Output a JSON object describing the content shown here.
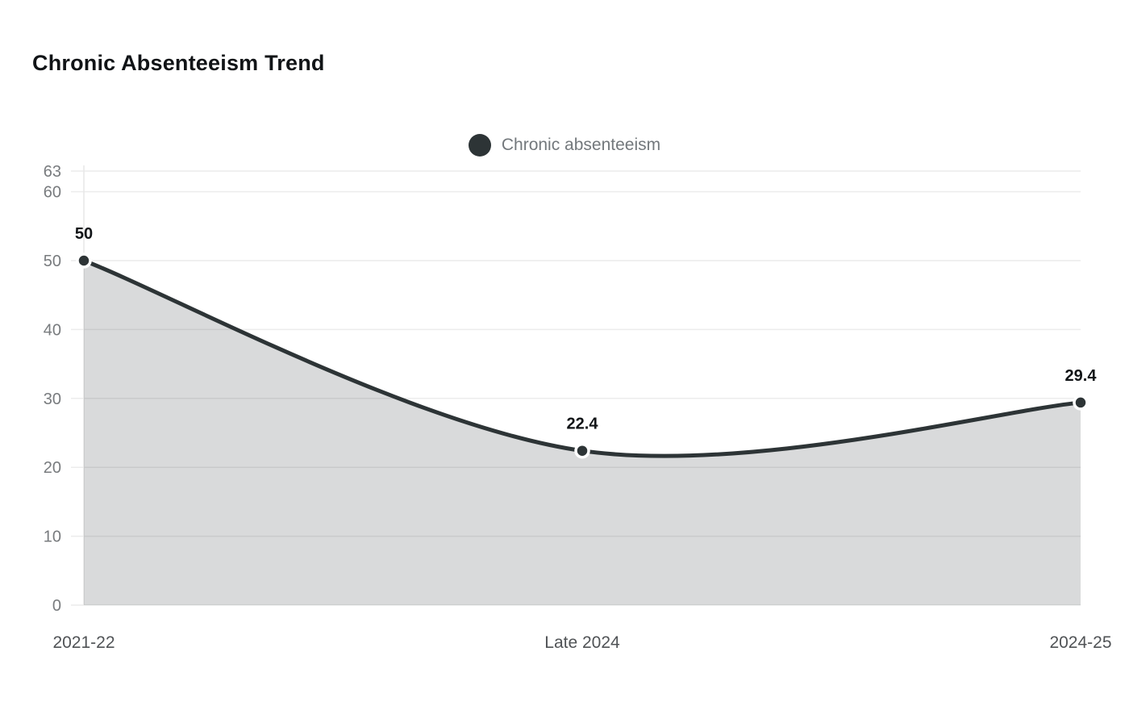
{
  "title": "Chronic Absenteeism Trend",
  "legend": {
    "label": "Chronic absenteeism",
    "marker_color": "#2d3436"
  },
  "chart_data": {
    "type": "area",
    "title": "Chronic Absenteeism Trend",
    "categories": [
      "2021-22",
      "Late 2024",
      "2024-25"
    ],
    "series": [
      {
        "name": "Chronic absenteeism",
        "values": [
          50,
          22.4,
          29.4
        ]
      }
    ],
    "point_labels": [
      "50",
      "22.4",
      "29.4"
    ],
    "y_ticks": [
      0,
      10,
      20,
      30,
      40,
      50,
      60,
      63
    ],
    "ylim": [
      0,
      63
    ],
    "xlabel": "",
    "ylabel": "",
    "smooth": true,
    "grid": true,
    "legend_position": "top-center",
    "colors": {
      "line": "#2d3436",
      "area": "rgba(45,52,54,0.18)",
      "marker_fill": "#2d3436",
      "marker_ring": "#ffffff",
      "gridline": "#ececec",
      "axis_line": "#e7e7e7",
      "y_tick_label": "#787b7e",
      "x_tick_label": "#505356",
      "point_label": "#111417",
      "title": "#111417",
      "legend_text": "#73787c",
      "background": "#ffffff"
    }
  }
}
